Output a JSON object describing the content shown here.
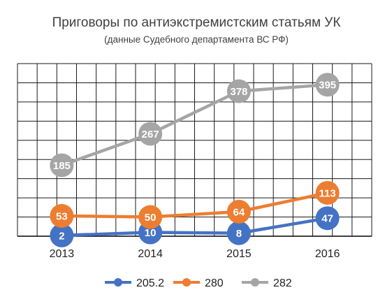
{
  "chart_data": {
    "type": "line",
    "title": "Приговоры по антиэкстремистским статьям УК",
    "subtitle": "(данные Судебного департамента ВС РФ)",
    "xlabel": "",
    "ylabel": "",
    "categories": [
      "2013",
      "2014",
      "2015",
      "2016"
    ],
    "ylim": [
      0,
      450
    ],
    "grid": true,
    "legend_position": "bottom",
    "series": [
      {
        "name": "205.2",
        "values": [
          2,
          10,
          8,
          47
        ],
        "labels": [
          "2",
          "10",
          "8",
          "47"
        ],
        "color": "#4472C4"
      },
      {
        "name": "280",
        "values": [
          53,
          50,
          64,
          113
        ],
        "labels": [
          "53",
          "50",
          "64",
          "113"
        ],
        "color": "#ED7D31"
      },
      {
        "name": "282",
        "values": [
          185,
          267,
          378,
          395
        ],
        "labels": [
          "185",
          "267",
          "378",
          "395"
        ],
        "color": "#A5A5A5"
      }
    ]
  }
}
